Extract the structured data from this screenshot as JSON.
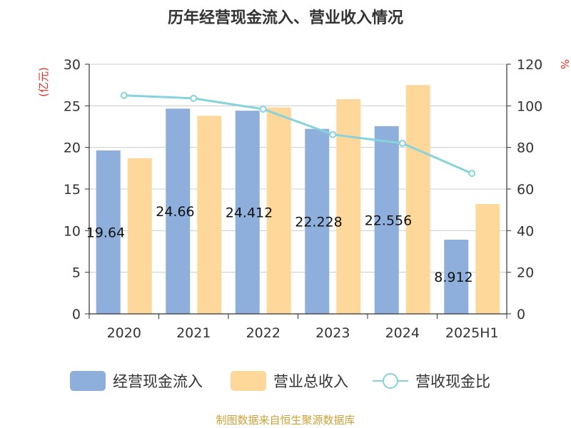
{
  "colors": {
    "bar_cashflow": "#8eaedb",
    "bar_revenue": "#fed89a",
    "line_ratio": "#86d3dc",
    "unit_left": "#e0302a",
    "unit_right": "#e0302a",
    "source": "#c9a23a",
    "title": "#333333"
  },
  "chart_data": {
    "type": "bar",
    "title": "历年经营现金流入、营业收入情况",
    "categories": [
      "2020",
      "2021",
      "2022",
      "2023",
      "2024",
      "2025H1"
    ],
    "series": [
      {
        "name": "经营现金流入",
        "type": "bar",
        "axis": "left",
        "values": [
          19.64,
          24.66,
          24.412,
          22.228,
          22.556,
          8.912
        ],
        "data_labels": [
          "19.64",
          "24.66",
          "24.412",
          "22.228",
          "22.556",
          "8.912"
        ]
      },
      {
        "name": "营业总收入",
        "type": "bar",
        "axis": "left",
        "values": [
          18.7,
          23.8,
          24.8,
          25.8,
          27.5,
          13.2
        ]
      },
      {
        "name": "营收现金比",
        "type": "line",
        "axis": "right",
        "values": [
          105,
          103.6,
          98.4,
          86.2,
          82.0,
          67.5
        ]
      }
    ],
    "y_left": {
      "unit": "(亿元)",
      "ylim": [
        0,
        30
      ],
      "ticks": [
        "0",
        "5",
        "10",
        "15",
        "20",
        "25",
        "30"
      ]
    },
    "y_right": {
      "unit": "%",
      "ylim": [
        0,
        120
      ],
      "ticks": [
        "0",
        "20",
        "40",
        "60",
        "80",
        "100",
        "120"
      ]
    },
    "grid": true,
    "legend_position": "bottom"
  },
  "source": "制图数据来自恒生聚源数据库"
}
